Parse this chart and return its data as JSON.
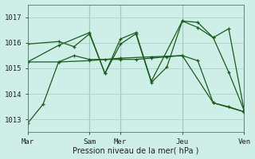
{
  "bg_color": "#ceeee8",
  "grid_color": "#aad4cc",
  "line_color": "#1a5c1a",
  "ylabel": "Pression niveau de la mer( hPa )",
  "ylim": [
    1012.5,
    1017.5
  ],
  "yticks": [
    1013,
    1014,
    1015,
    1016,
    1017
  ],
  "day_labels": [
    "Mar",
    "Sam",
    "Mer",
    "Jeu",
    "Ven"
  ],
  "day_positions": [
    0,
    4,
    6,
    10,
    14
  ],
  "xlim": [
    0,
    14
  ],
  "series": [
    {
      "x": [
        0,
        2,
        4,
        6,
        8,
        10,
        12,
        14
      ],
      "y": [
        1015.25,
        1015.25,
        1015.3,
        1015.4,
        1015.45,
        1015.5,
        1013.65,
        1013.3
      ]
    },
    {
      "x": [
        0,
        1,
        2,
        3,
        4,
        5,
        6,
        7,
        8,
        9,
        10,
        11,
        12,
        13,
        14
      ],
      "y": [
        1012.85,
        1013.6,
        1015.25,
        1015.5,
        1015.35,
        1015.35,
        1015.35,
        1015.35,
        1015.4,
        1015.45,
        1015.5,
        1015.3,
        1013.65,
        1013.5,
        1013.3
      ]
    },
    {
      "x": [
        0,
        2,
        3,
        4,
        5,
        6,
        7,
        8,
        9,
        10,
        11,
        12,
        13,
        14
      ],
      "y": [
        1015.95,
        1016.05,
        1015.85,
        1016.35,
        1014.8,
        1015.95,
        1016.35,
        1014.45,
        1015.05,
        1016.85,
        1016.8,
        1016.2,
        1016.55,
        1013.35
      ]
    },
    {
      "x": [
        0,
        2,
        4,
        5,
        6,
        7,
        8,
        10,
        11,
        12,
        13,
        14
      ],
      "y": [
        1015.25,
        1015.9,
        1016.4,
        1014.8,
        1016.15,
        1016.4,
        1014.5,
        1016.85,
        1016.6,
        1016.2,
        1014.85,
        1013.35
      ]
    }
  ]
}
